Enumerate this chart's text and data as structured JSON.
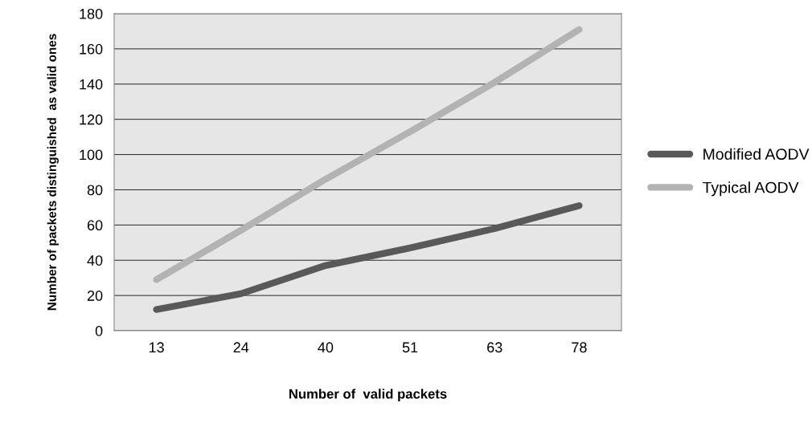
{
  "chart_data": {
    "type": "line",
    "xlabel": "Number of  valid packets",
    "ylabel": "Number of packets distinguished  as valid ones",
    "categories": [
      "13",
      "24",
      "40",
      "51",
      "63",
      "78"
    ],
    "series": [
      {
        "name": "Modified AODV",
        "color": "#595959",
        "values": [
          12,
          21,
          37,
          47,
          58,
          71
        ]
      },
      {
        "name": "Typical AODV",
        "color": "#b3b3b3",
        "values": [
          29,
          57,
          86,
          113,
          141,
          171
        ]
      }
    ],
    "ylim": [
      0,
      180
    ],
    "yticks": [
      0,
      20,
      40,
      60,
      80,
      100,
      120,
      140,
      160,
      180
    ],
    "grid": "y",
    "legend": "right",
    "marker": "none",
    "line_style": "solid"
  }
}
